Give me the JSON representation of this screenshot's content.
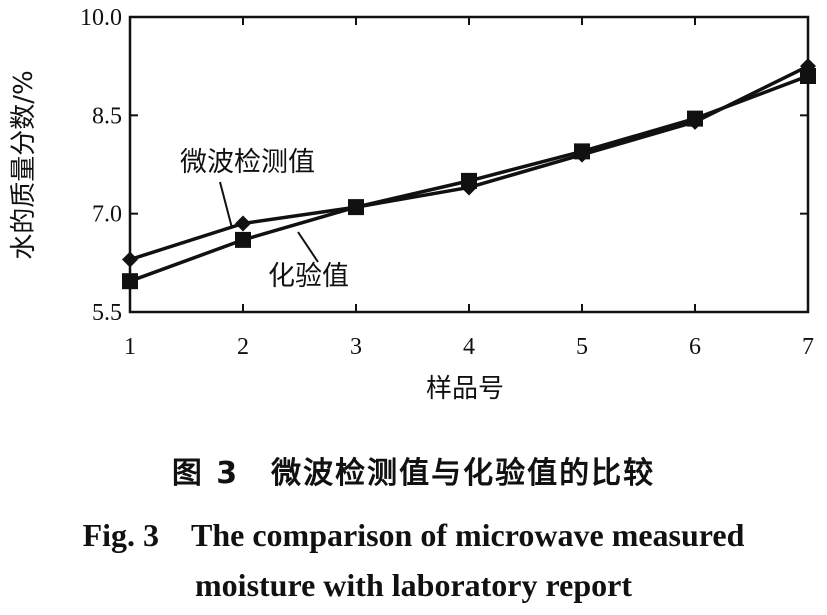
{
  "chart_data": {
    "type": "line",
    "x": [
      1,
      2,
      3,
      4,
      5,
      6,
      7
    ],
    "xlabel": "样品号",
    "ylabel": "水的质量分数/%",
    "xlim": [
      1,
      7
    ],
    "ylim": [
      5.5,
      10.0
    ],
    "yticks": [
      "5.5",
      "7.0",
      "8.5",
      "10.0"
    ],
    "xticks": [
      "1",
      "2",
      "3",
      "4",
      "5",
      "6",
      "7"
    ],
    "grid": false,
    "series": [
      {
        "name": "微波检测值",
        "marker": "diamond",
        "values": [
          6.3,
          6.85,
          7.1,
          7.4,
          7.9,
          8.4,
          9.25
        ]
      },
      {
        "name": "化验值",
        "marker": "square",
        "values": [
          5.97,
          6.6,
          7.1,
          7.5,
          7.95,
          8.45,
          9.1
        ]
      }
    ]
  },
  "caption": {
    "cn": "图 3　微波检测值与化验值的比较",
    "en_line1": "Fig. 3　The comparison of microwave measured",
    "en_line2": "moisture with laboratory report"
  },
  "colors": {
    "line": "#111111",
    "axis": "#111111"
  }
}
